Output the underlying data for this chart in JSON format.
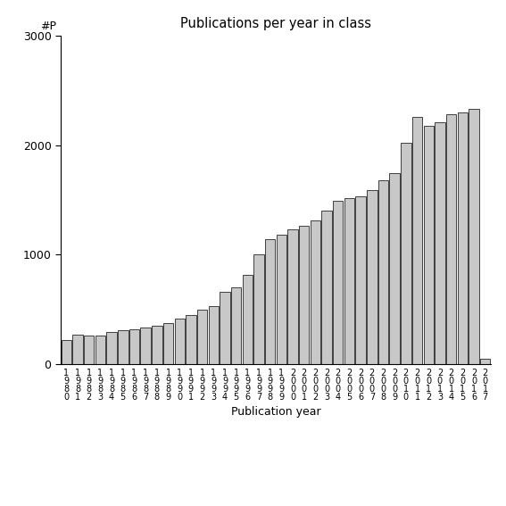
{
  "title": "Publications per year in class",
  "xlabel": "Publication year",
  "ylabel": "#P",
  "ylim": [
    0,
    3000
  ],
  "yticks": [
    0,
    1000,
    2000,
    3000
  ],
  "bar_color": "#c8c8c8",
  "bar_edgecolor": "#000000",
  "values": [
    220,
    270,
    265,
    260,
    295,
    315,
    320,
    335,
    355,
    375,
    420,
    450,
    500,
    530,
    660,
    700,
    820,
    1000,
    1140,
    1180,
    1230,
    1265,
    1310,
    1400,
    1490,
    1520,
    1530,
    1590,
    1680,
    1740,
    2020,
    2260,
    2175,
    2205,
    2285,
    2295,
    2330,
    50
  ],
  "background_color": "#ffffff",
  "figsize": [
    5.67,
    5.67
  ],
  "dpi": 100
}
